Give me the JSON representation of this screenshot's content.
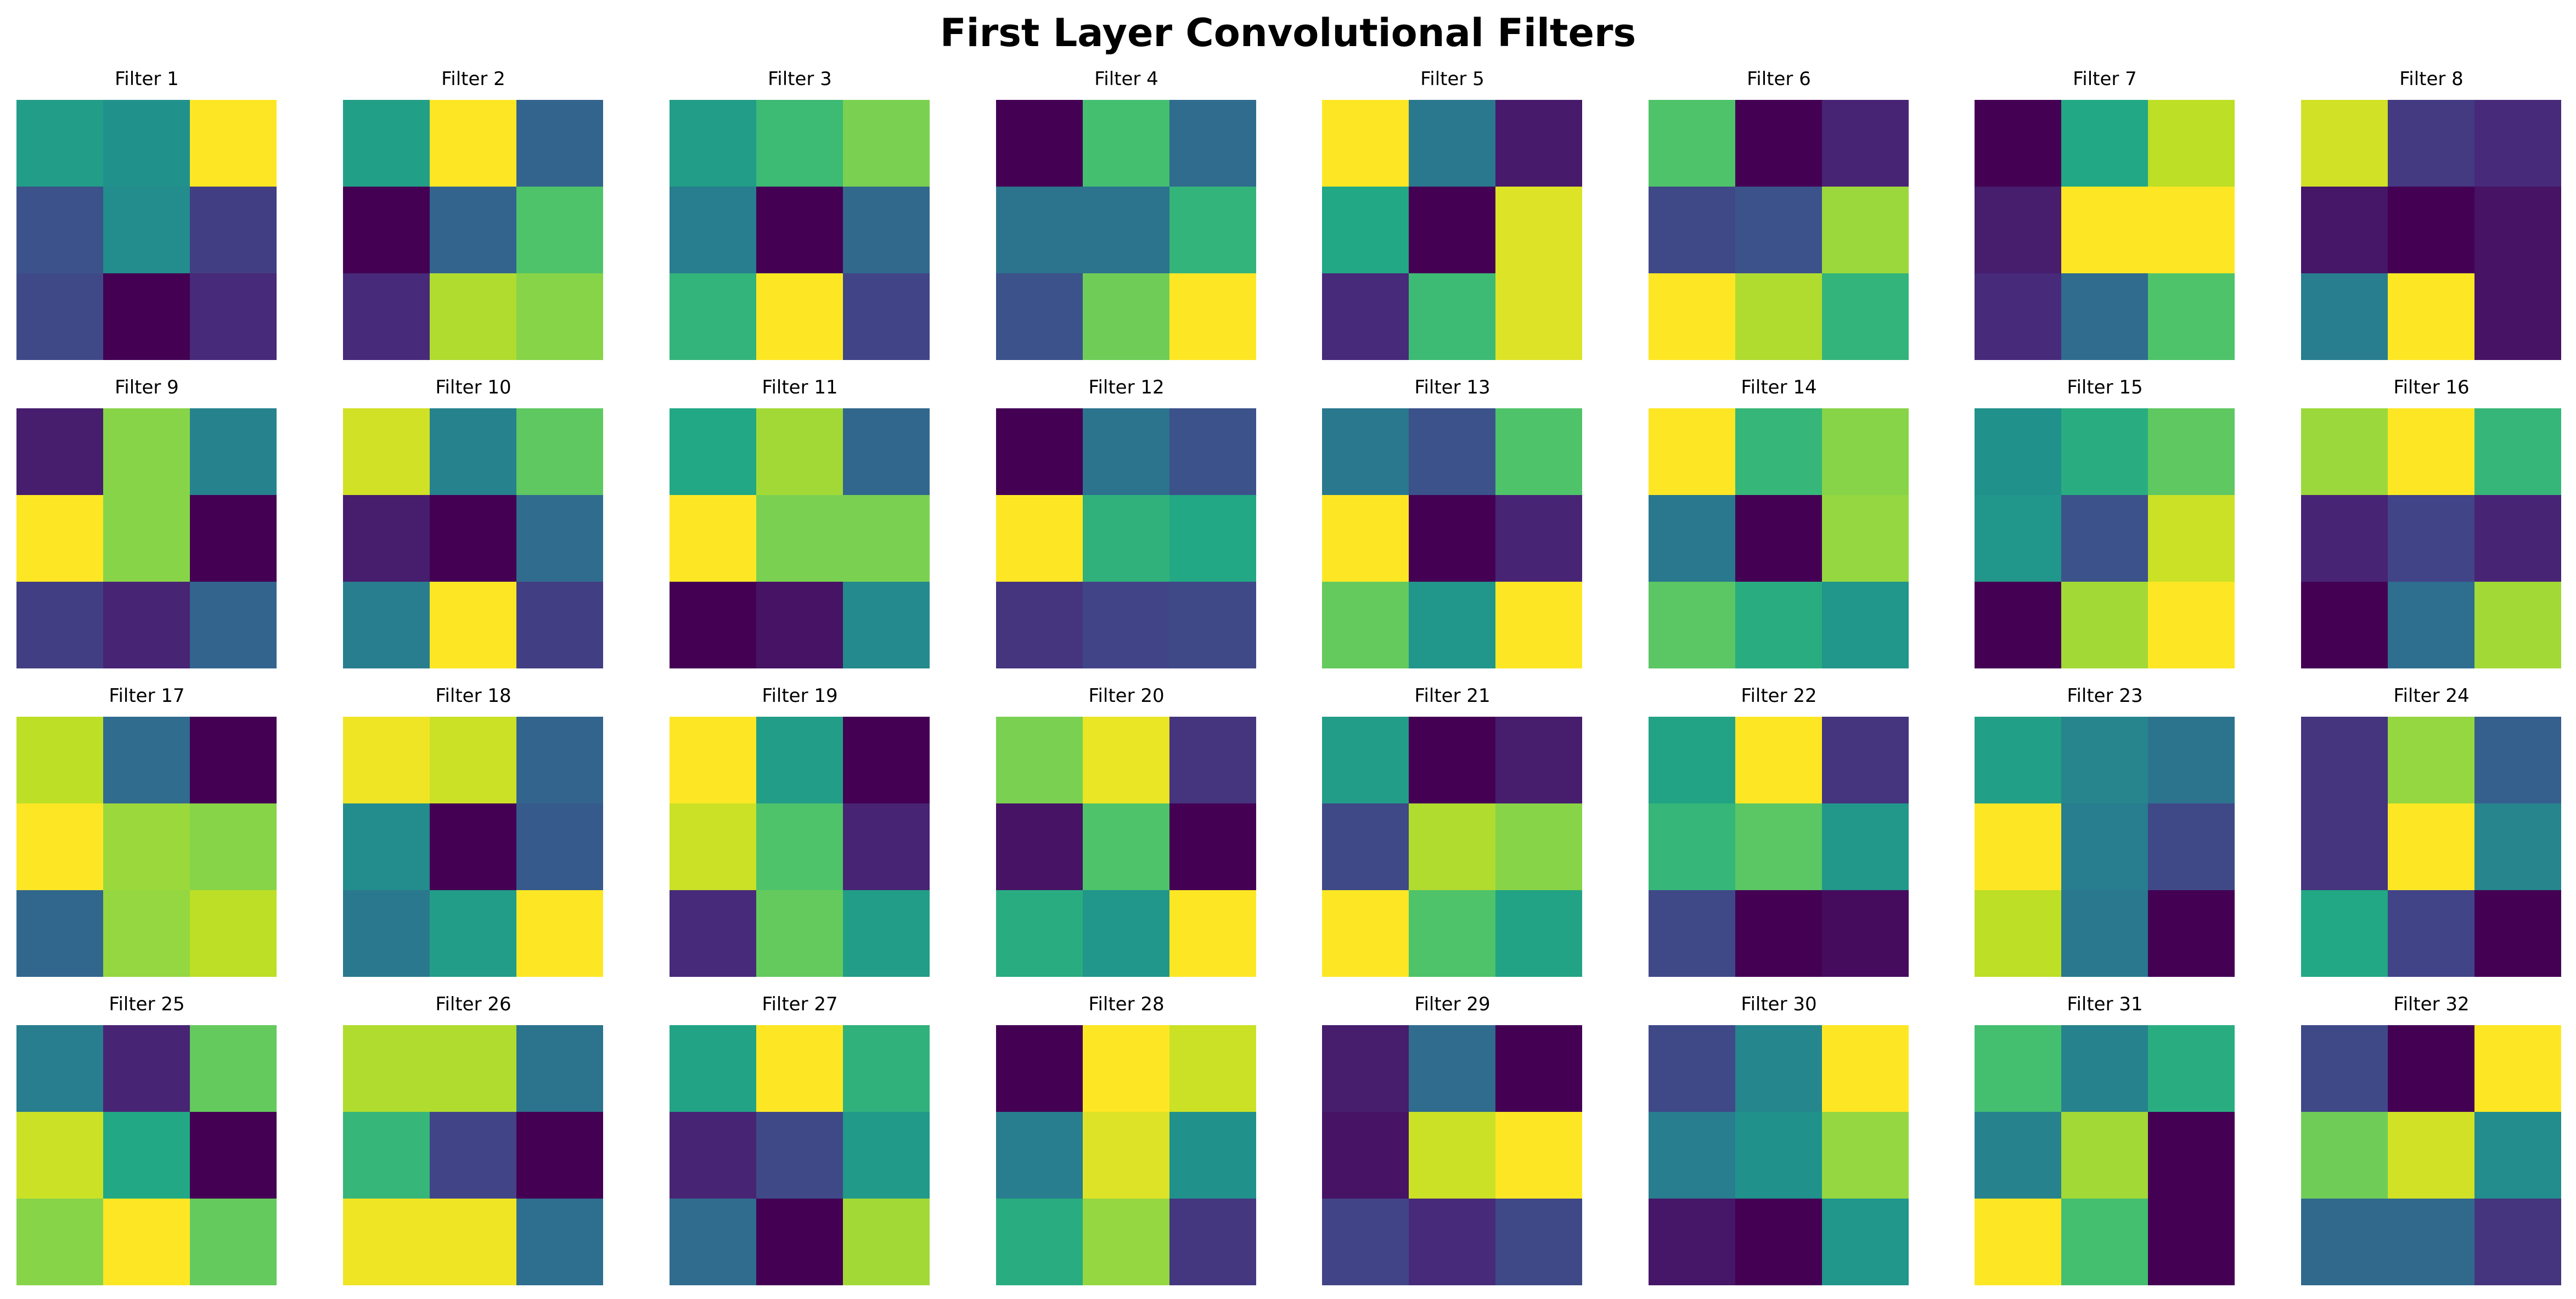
{
  "title": "First Layer Convolutional Filters",
  "chart_data": {
    "type": "heatmap",
    "title": "First Layer Convolutional Filters",
    "colormap": "viridis",
    "value_range": [
      0,
      1
    ],
    "kernel_size": [
      3,
      3
    ],
    "grid": {
      "rows": 4,
      "cols": 8
    },
    "axes_visible": false,
    "filters": [
      {
        "label": "Filter 1",
        "values": [
          [
            0.55,
            0.5,
            1.0
          ],
          [
            0.25,
            0.48,
            0.18
          ],
          [
            0.22,
            0.0,
            0.12
          ]
        ]
      },
      {
        "label": "Filter 2",
        "values": [
          [
            0.56,
            1.0,
            0.32
          ],
          [
            0.0,
            0.32,
            0.72
          ],
          [
            0.12,
            0.88,
            0.82
          ]
        ]
      },
      {
        "label": "Filter 3",
        "values": [
          [
            0.55,
            0.68,
            0.8
          ],
          [
            0.42,
            0.0,
            0.34
          ],
          [
            0.65,
            1.0,
            0.2
          ]
        ]
      },
      {
        "label": "Filter 4",
        "values": [
          [
            0.0,
            0.7,
            0.35
          ],
          [
            0.38,
            0.38,
            0.65
          ],
          [
            0.25,
            0.78,
            1.0
          ]
        ]
      },
      {
        "label": "Filter 5",
        "values": [
          [
            1.0,
            0.4,
            0.07
          ],
          [
            0.6,
            0.0,
            0.95
          ],
          [
            0.12,
            0.68,
            0.95
          ]
        ]
      },
      {
        "label": "Filter 6",
        "values": [
          [
            0.72,
            0.0,
            0.1
          ],
          [
            0.22,
            0.25,
            0.85
          ],
          [
            1.0,
            0.88,
            0.65
          ]
        ]
      },
      {
        "label": "Filter 7",
        "values": [
          [
            0.0,
            0.6,
            0.9
          ],
          [
            0.08,
            1.0,
            1.0
          ],
          [
            0.12,
            0.35,
            0.72
          ]
        ]
      },
      {
        "label": "Filter 8",
        "values": [
          [
            0.93,
            0.17,
            0.12
          ],
          [
            0.06,
            0.0,
            0.05
          ],
          [
            0.42,
            1.0,
            0.05
          ]
        ]
      },
      {
        "label": "Filter 9",
        "values": [
          [
            0.08,
            0.82,
            0.44
          ],
          [
            1.0,
            0.82,
            0.0
          ],
          [
            0.18,
            0.1,
            0.32
          ]
        ]
      },
      {
        "label": "Filter 10",
        "values": [
          [
            0.93,
            0.44,
            0.75
          ],
          [
            0.08,
            0.0,
            0.35
          ],
          [
            0.42,
            1.0,
            0.18
          ]
        ]
      },
      {
        "label": "Filter 11",
        "values": [
          [
            0.6,
            0.86,
            0.33
          ],
          [
            1.0,
            0.8,
            0.8
          ],
          [
            0.0,
            0.05,
            0.47
          ]
        ]
      },
      {
        "label": "Filter 12",
        "values": [
          [
            0.0,
            0.38,
            0.25
          ],
          [
            1.0,
            0.64,
            0.6
          ],
          [
            0.15,
            0.2,
            0.22
          ]
        ]
      },
      {
        "label": "Filter 13",
        "values": [
          [
            0.4,
            0.25,
            0.72
          ],
          [
            1.0,
            0.0,
            0.1
          ],
          [
            0.76,
            0.52,
            1.0
          ]
        ]
      },
      {
        "label": "Filter 14",
        "values": [
          [
            1.0,
            0.66,
            0.82
          ],
          [
            0.4,
            0.0,
            0.84
          ],
          [
            0.74,
            0.62,
            0.52
          ]
        ]
      },
      {
        "label": "Filter 15",
        "values": [
          [
            0.5,
            0.62,
            0.75
          ],
          [
            0.52,
            0.25,
            0.92
          ],
          [
            0.0,
            0.86,
            1.0
          ]
        ]
      },
      {
        "label": "Filter 16",
        "values": [
          [
            0.85,
            1.0,
            0.66
          ],
          [
            0.1,
            0.2,
            0.1
          ],
          [
            0.0,
            0.36,
            0.86
          ]
        ]
      },
      {
        "label": "Filter 17",
        "values": [
          [
            0.9,
            0.35,
            0.0
          ],
          [
            1.0,
            0.85,
            0.82
          ],
          [
            0.33,
            0.84,
            0.9
          ]
        ]
      },
      {
        "label": "Filter 18",
        "values": [
          [
            0.98,
            0.92,
            0.32
          ],
          [
            0.48,
            0.0,
            0.28
          ],
          [
            0.4,
            0.55,
            1.0
          ]
        ]
      },
      {
        "label": "Filter 19",
        "values": [
          [
            1.0,
            0.55,
            0.0
          ],
          [
            0.92,
            0.72,
            0.1
          ],
          [
            0.12,
            0.76,
            0.55
          ]
        ]
      },
      {
        "label": "Filter 20",
        "values": [
          [
            0.8,
            0.97,
            0.15
          ],
          [
            0.05,
            0.72,
            0.0
          ],
          [
            0.62,
            0.52,
            1.0
          ]
        ]
      },
      {
        "label": "Filter 21",
        "values": [
          [
            0.55,
            0.0,
            0.08
          ],
          [
            0.22,
            0.88,
            0.82
          ],
          [
            1.0,
            0.72,
            0.58
          ]
        ]
      },
      {
        "label": "Filter 22",
        "values": [
          [
            0.58,
            1.0,
            0.15
          ],
          [
            0.66,
            0.74,
            0.53
          ],
          [
            0.22,
            0.0,
            0.03
          ]
        ]
      },
      {
        "label": "Filter 23",
        "values": [
          [
            0.56,
            0.45,
            0.38
          ],
          [
            1.0,
            0.42,
            0.22
          ],
          [
            0.9,
            0.4,
            0.0
          ]
        ]
      },
      {
        "label": "Filter 24",
        "values": [
          [
            0.15,
            0.84,
            0.3
          ],
          [
            0.15,
            1.0,
            0.45
          ],
          [
            0.6,
            0.2,
            0.0
          ]
        ]
      },
      {
        "label": "Filter 25",
        "values": [
          [
            0.42,
            0.1,
            0.76
          ],
          [
            0.92,
            0.6,
            0.0
          ],
          [
            0.82,
            1.0,
            0.76
          ]
        ]
      },
      {
        "label": "Filter 26",
        "values": [
          [
            0.88,
            0.88,
            0.38
          ],
          [
            0.66,
            0.2,
            0.0
          ],
          [
            0.98,
            0.98,
            0.36
          ]
        ]
      },
      {
        "label": "Filter 27",
        "values": [
          [
            0.58,
            1.0,
            0.64
          ],
          [
            0.1,
            0.22,
            0.54
          ],
          [
            0.35,
            0.0,
            0.86
          ]
        ]
      },
      {
        "label": "Filter 28",
        "values": [
          [
            0.0,
            1.0,
            0.92
          ],
          [
            0.42,
            0.95,
            0.5
          ],
          [
            0.62,
            0.84,
            0.16
          ]
        ]
      },
      {
        "label": "Filter 29",
        "values": [
          [
            0.08,
            0.35,
            0.0
          ],
          [
            0.05,
            0.92,
            1.0
          ],
          [
            0.2,
            0.12,
            0.22
          ]
        ]
      },
      {
        "label": "Filter 30",
        "values": [
          [
            0.22,
            0.46,
            1.0
          ],
          [
            0.42,
            0.5,
            0.84
          ],
          [
            0.06,
            0.0,
            0.52
          ]
        ]
      },
      {
        "label": "Filter 31",
        "values": [
          [
            0.7,
            0.44,
            0.62
          ],
          [
            0.44,
            0.86,
            0.0
          ],
          [
            1.0,
            0.7,
            0.0
          ]
        ]
      },
      {
        "label": "Filter 32",
        "values": [
          [
            0.22,
            0.0,
            1.0
          ],
          [
            0.78,
            0.93,
            0.48
          ],
          [
            0.34,
            0.34,
            0.15
          ]
        ]
      }
    ]
  }
}
